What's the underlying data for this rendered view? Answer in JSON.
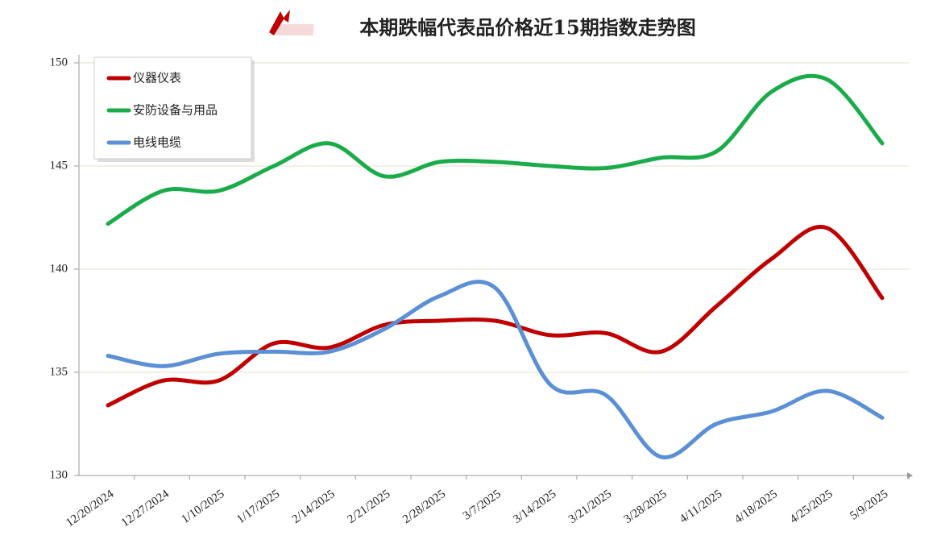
{
  "chart_data": {
    "type": "line",
    "title": "本期跌幅代表品价格近15期指数走势图",
    "categories": [
      "12/20/2024",
      "12/27/2024",
      "1/10/2025",
      "1/17/2025",
      "2/14/2025",
      "2/21/2025",
      "2/28/2025",
      "3/7/2025",
      "3/14/2025",
      "3/21/2025",
      "3/28/2025",
      "4/11/2025",
      "4/18/2025",
      "4/25/2025",
      "5/9/2025"
    ],
    "series": [
      {
        "name": "仪器仪表",
        "color": "#c00000",
        "values": [
          133.4,
          134.6,
          134.6,
          136.4,
          136.2,
          137.3,
          137.5,
          137.5,
          136.8,
          136.9,
          136.0,
          138.2,
          140.5,
          142.0,
          138.6
        ]
      },
      {
        "name": "安防设备与用品",
        "color": "#1aab4a",
        "values": [
          142.2,
          143.8,
          143.8,
          145.0,
          146.1,
          144.5,
          145.2,
          145.2,
          145.0,
          144.9,
          145.4,
          145.7,
          148.6,
          149.2,
          146.1
        ]
      },
      {
        "name": "电线电缆",
        "color": "#5b8fd6",
        "values": [
          135.8,
          135.3,
          135.9,
          136.0,
          136.0,
          137.1,
          138.7,
          139.1,
          134.4,
          133.9,
          130.9,
          132.5,
          133.1,
          134.1,
          132.8
        ]
      }
    ],
    "ylim": [
      130,
      150
    ],
    "yticks": [
      130,
      135,
      140,
      145,
      150
    ],
    "grid": true,
    "legend": "top-left"
  }
}
